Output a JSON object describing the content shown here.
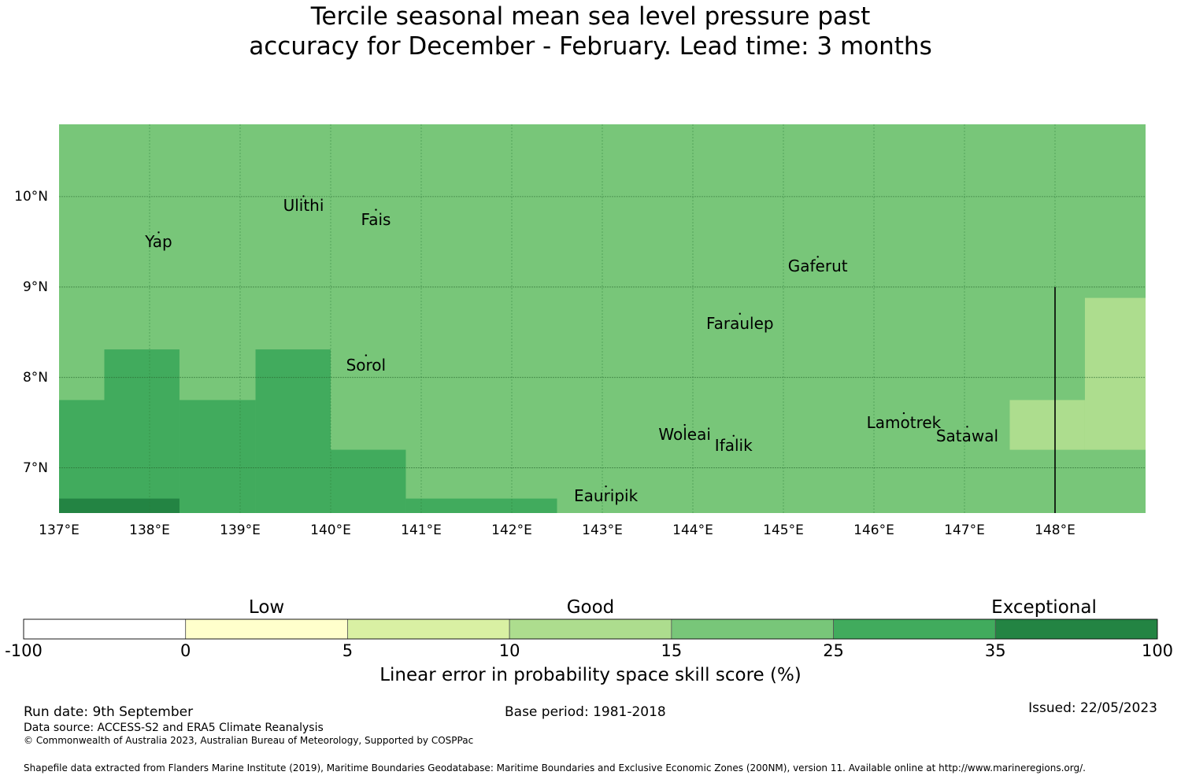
{
  "title": {
    "line1": "Tercile seasonal mean sea level pressure past",
    "line2": "accuracy for December - February. Lead time: 3 months"
  },
  "map": {
    "lon_range": [
      137.0,
      149.0
    ],
    "lat_range": [
      6.5,
      10.8
    ],
    "x_ticks": [
      {
        "value": 137,
        "label": "137°E"
      },
      {
        "value": 138,
        "label": "138°E"
      },
      {
        "value": 139,
        "label": "139°E"
      },
      {
        "value": 140,
        "label": "140°E"
      },
      {
        "value": 141,
        "label": "141°E"
      },
      {
        "value": 142,
        "label": "142°E"
      },
      {
        "value": 143,
        "label": "143°E"
      },
      {
        "value": 144,
        "label": "144°E"
      },
      {
        "value": 145,
        "label": "145°E"
      },
      {
        "value": 146,
        "label": "146°E"
      },
      {
        "value": 147,
        "label": "147°E"
      },
      {
        "value": 148,
        "label": "148°E"
      }
    ],
    "y_ticks": [
      {
        "value": 10,
        "label": "10°N"
      },
      {
        "value": 9,
        "label": "9°N"
      },
      {
        "value": 8,
        "label": "8°N"
      },
      {
        "value": 7,
        "label": "7°N"
      }
    ],
    "background_color": "#78c679",
    "cells": [
      {
        "lon0": 137.0,
        "lon1": 137.5,
        "lat0": 6.5,
        "lat1": 7.75,
        "color": "#41ab5d"
      },
      {
        "lon0": 137.5,
        "lon1": 138.33,
        "lat0": 6.5,
        "lat1": 8.31,
        "color": "#41ab5d"
      },
      {
        "lon0": 138.33,
        "lon1": 139.17,
        "lat0": 6.5,
        "lat1": 7.75,
        "color": "#41ab5d"
      },
      {
        "lon0": 139.17,
        "lon1": 140.0,
        "lat0": 6.5,
        "lat1": 8.31,
        "color": "#41ab5d"
      },
      {
        "lon0": 140.0,
        "lon1": 140.83,
        "lat0": 6.5,
        "lat1": 7.2,
        "color": "#41ab5d"
      },
      {
        "lon0": 140.83,
        "lon1": 142.5,
        "lat0": 6.5,
        "lat1": 6.66,
        "color": "#41ab5d"
      },
      {
        "lon0": 137.0,
        "lon1": 138.33,
        "lat0": 6.5,
        "lat1": 6.66,
        "color": "#238443"
      },
      {
        "lon0": 147.5,
        "lon1": 148.33,
        "lat0": 7.2,
        "lat1": 7.75,
        "color": "#addd8e"
      },
      {
        "lon0": 148.33,
        "lon1": 149.0,
        "lat0": 7.2,
        "lat1": 8.88,
        "color": "#addd8e"
      }
    ],
    "boundary_line": {
      "lon": 148.0,
      "lat0": 6.5,
      "lat1": 9.0
    },
    "islands": [
      {
        "name": "Yap",
        "lon": 138.1,
        "lat": 9.5
      },
      {
        "name": "Ulithi",
        "lon": 139.7,
        "lat": 9.9
      },
      {
        "name": "Fais",
        "lon": 140.5,
        "lat": 9.75
      },
      {
        "name": "Gaferut",
        "lon": 145.38,
        "lat": 9.23
      },
      {
        "name": "Faraulep",
        "lon": 144.52,
        "lat": 8.6
      },
      {
        "name": "Sorol",
        "lon": 140.39,
        "lat": 8.14
      },
      {
        "name": "Woleai",
        "lon": 143.91,
        "lat": 7.37
      },
      {
        "name": "Ifalik",
        "lon": 144.45,
        "lat": 7.25
      },
      {
        "name": "Lamotrek",
        "lon": 146.33,
        "lat": 7.5
      },
      {
        "name": "Satawal",
        "lon": 147.03,
        "lat": 7.35
      },
      {
        "name": "Eauripik",
        "lon": 143.04,
        "lat": 6.69
      }
    ]
  },
  "colorbar": {
    "categories": [
      {
        "label": "Low",
        "at_boundary": 1.5
      },
      {
        "label": "Good",
        "at_boundary": 3.5
      },
      {
        "label": "Exceptional",
        "at_boundary": 6.3
      }
    ],
    "bins": [
      {
        "from": "-100",
        "to": "0",
        "color": "#ffffff"
      },
      {
        "from": "0",
        "to": "5",
        "color": "#ffffcc"
      },
      {
        "from": "5",
        "to": "10",
        "color": "#d9f0a3"
      },
      {
        "from": "10",
        "to": "15",
        "color": "#addd8e"
      },
      {
        "from": "15",
        "to": "25",
        "color": "#78c679"
      },
      {
        "from": "25",
        "to": "35",
        "color": "#41ab5d"
      },
      {
        "from": "35",
        "to": "100",
        "color": "#238443"
      }
    ],
    "tick_labels": [
      "-100",
      "0",
      "5",
      "10",
      "15",
      "25",
      "35",
      "100"
    ],
    "title": "Linear error in probability space skill score (%)"
  },
  "footer": {
    "run_date": "Run date: 9th September",
    "base_period": "Base period: 1981-2018",
    "issued": "Issued: 22/05/2023",
    "data_source": "Data source: ACCESS-S2 and ERA5 Climate Reanalysis",
    "copyright": "© Commonwealth of Australia 2023, Australian Bureau of Meteorology, Supported by COSPPac",
    "shapefile": "Shapefile data extracted from Flanders Marine Institute (2019), Maritime Boundaries Geodatabase: Maritime Boundaries and Exclusive Economic Zones (200NM), version 11. Available online at http://www.marineregions.org/."
  }
}
